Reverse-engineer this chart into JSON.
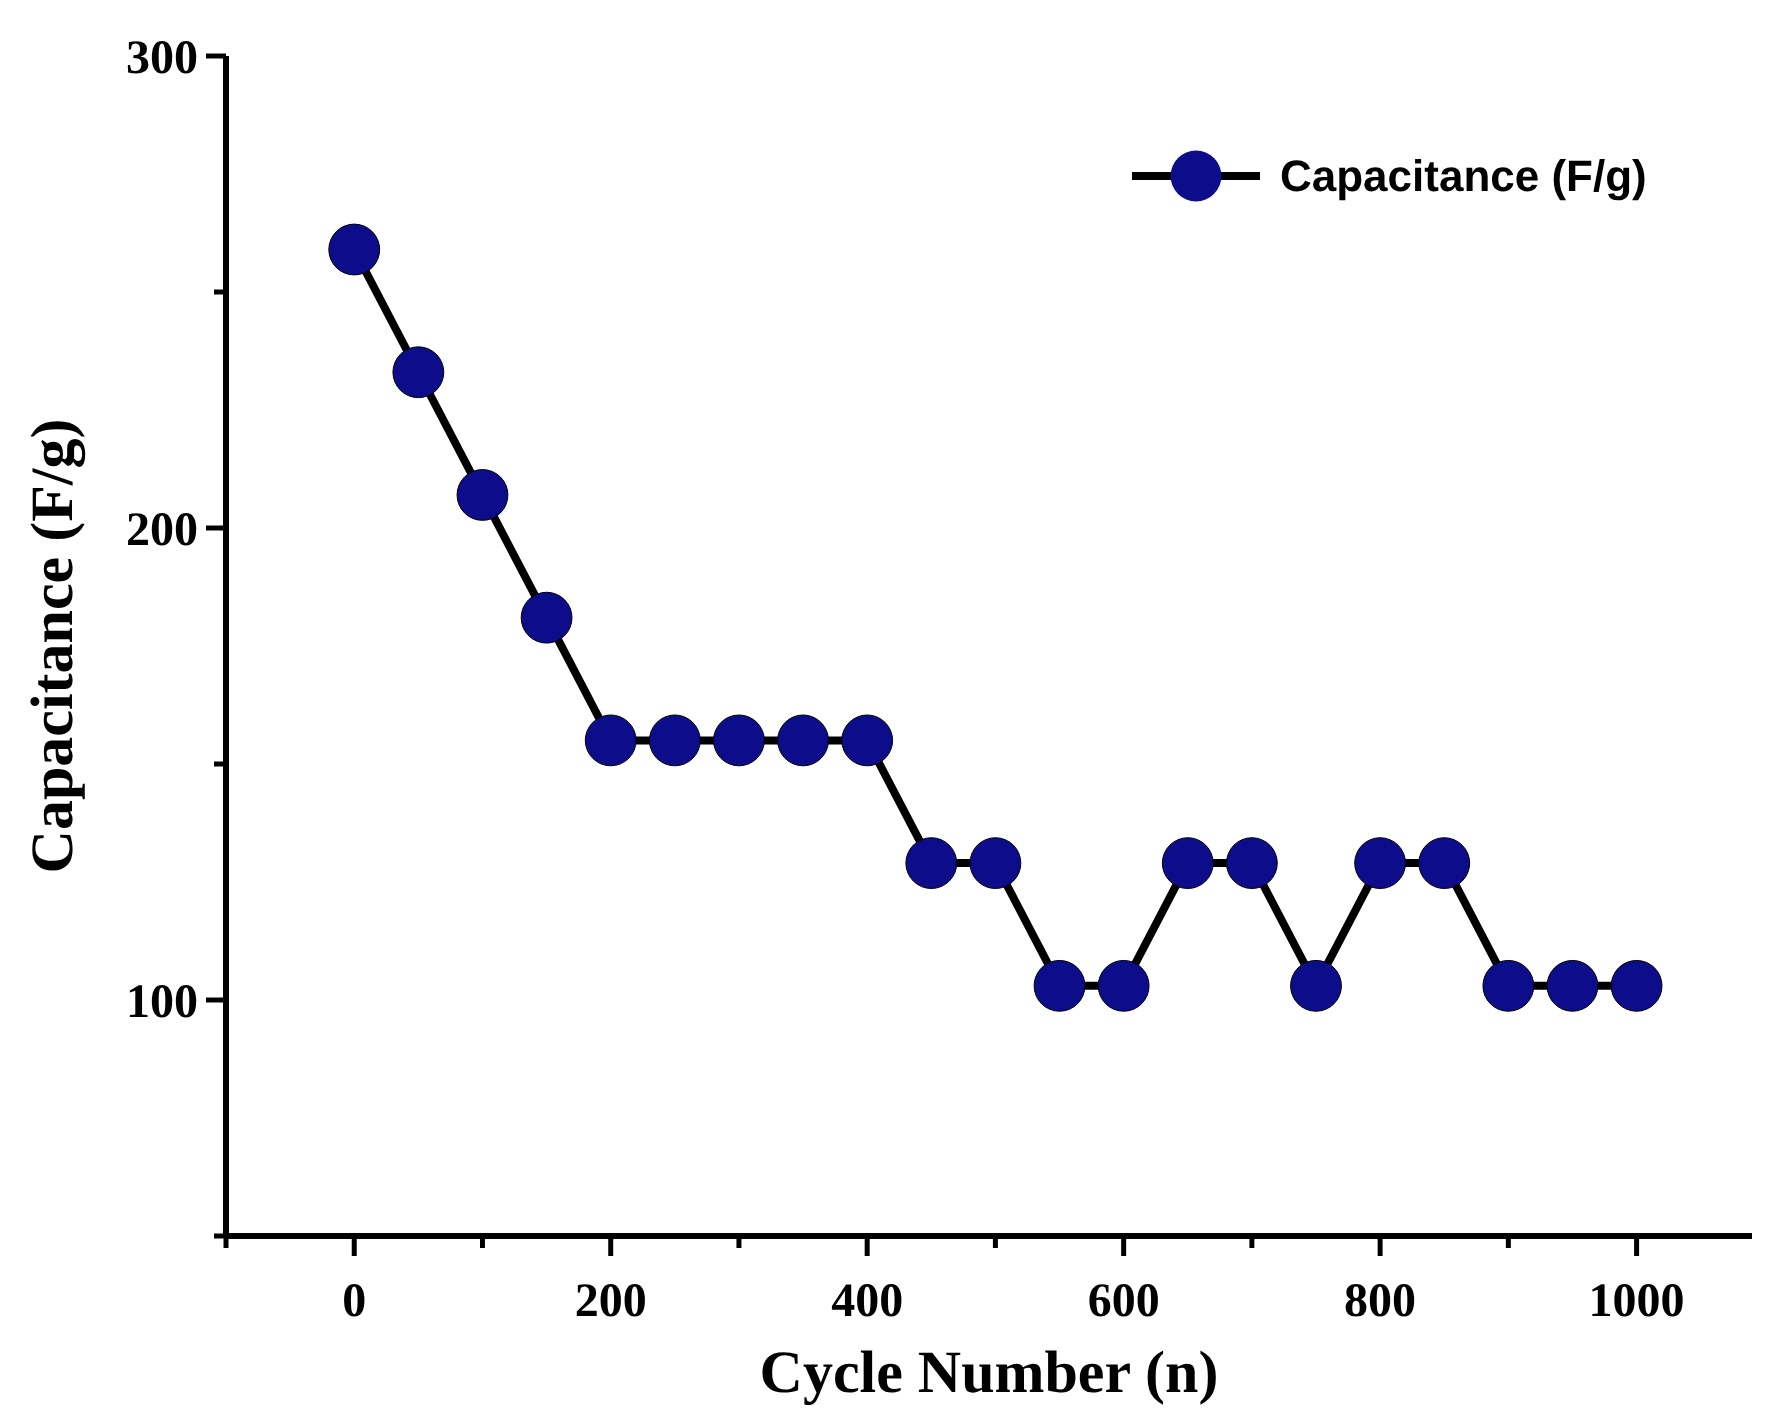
{
  "chart_data": {
    "type": "line",
    "xlabel": "Cycle Number (n)",
    "ylabel": "Capacitance (F/g)",
    "x": [
      0,
      50,
      100,
      150,
      200,
      250,
      300,
      350,
      400,
      450,
      500,
      550,
      600,
      650,
      700,
      750,
      800,
      850,
      900,
      950,
      1000
    ],
    "series": [
      {
        "name": "Capacitance (F/g)",
        "color": "#0d0d8c",
        "values": [
          259,
          233,
          207,
          181,
          155,
          155,
          155,
          155,
          155,
          129,
          129,
          103,
          103,
          129,
          129,
          103,
          129,
          129,
          103,
          103,
          103
        ]
      }
    ],
    "xlim": [
      -100,
      1090
    ],
    "ylim": [
      50,
      300
    ],
    "xticks": [
      {
        "value": -100,
        "label": null
      },
      0,
      {
        "value": 100,
        "label": null
      },
      200,
      {
        "value": 300,
        "label": null
      },
      400,
      {
        "value": 500,
        "label": null
      },
      600,
      {
        "value": 700,
        "label": null
      },
      800,
      {
        "value": 900,
        "label": null
      },
      1000
    ],
    "yticks": [
      {
        "value": 50,
        "label": null
      },
      100,
      {
        "value": 150,
        "label": null
      },
      200,
      {
        "value": 250,
        "label": null
      },
      300
    ],
    "marker": "circle",
    "line_style": "solid",
    "legend": "top right",
    "grid": false
  }
}
